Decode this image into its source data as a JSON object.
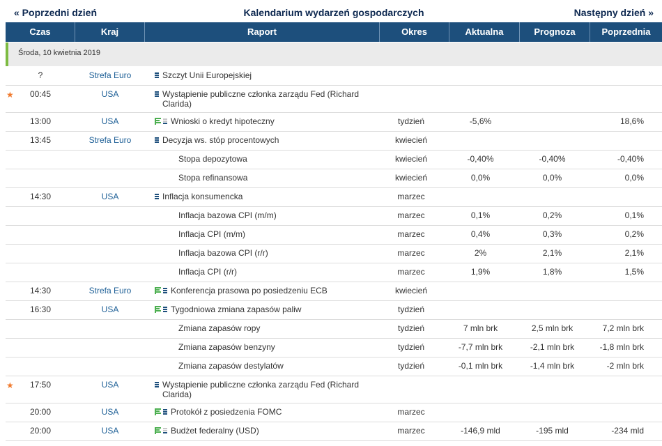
{
  "nav": {
    "prev": "« Poprzedni dzień",
    "title": "Kalendarium wydarzeń gospodarczych",
    "next": "Następny dzień »"
  },
  "headers": [
    "Czas",
    "Kraj",
    "Raport",
    "Okres",
    "Aktualna",
    "Prognoza",
    "Poprzednia"
  ],
  "day_label": "Środa, 10 kwietnia 2019",
  "events": [
    {
      "star": false,
      "time": "?",
      "country": "Strefa Euro",
      "report": "Szczyt Unii Europejskiej",
      "importance": "high",
      "doc": false,
      "sub": false,
      "tall": false,
      "period": "",
      "actual": "",
      "forecast": "",
      "previous": ""
    },
    {
      "star": true,
      "time": "00:45",
      "country": "USA",
      "report": "Wystąpienie publiczne członka zarządu Fed (Richard Clarida)",
      "importance": "high",
      "doc": false,
      "sub": false,
      "tall": true,
      "period": "",
      "actual": "",
      "forecast": "",
      "previous": ""
    },
    {
      "star": false,
      "time": "13:00",
      "country": "USA",
      "report": "Wnioski o kredyt hipoteczny",
      "importance": "low",
      "doc": true,
      "sub": false,
      "tall": false,
      "period": "tydzień",
      "actual": "-5,6%",
      "forecast": "",
      "previous": "18,6%"
    },
    {
      "star": false,
      "time": "13:45",
      "country": "Strefa Euro",
      "report": "Decyzja ws. stóp procentowych",
      "importance": "high",
      "doc": false,
      "sub": false,
      "tall": false,
      "period": "kwiecień",
      "actual": "",
      "forecast": "",
      "previous": ""
    },
    {
      "star": false,
      "time": "",
      "country": "",
      "report": "Stopa depozytowa",
      "importance": "",
      "doc": false,
      "sub": true,
      "tall": false,
      "period": "kwiecień",
      "actual": "-0,40%",
      "forecast": "-0,40%",
      "previous": "-0,40%"
    },
    {
      "star": false,
      "time": "",
      "country": "",
      "report": "Stopa refinansowa",
      "importance": "",
      "doc": false,
      "sub": true,
      "tall": false,
      "period": "kwiecień",
      "actual": "0,0%",
      "forecast": "0,0%",
      "previous": "0,0%"
    },
    {
      "star": false,
      "time": "14:30",
      "country": "USA",
      "report": "Inflacja konsumencka",
      "importance": "high",
      "doc": false,
      "sub": false,
      "tall": false,
      "period": "marzec",
      "actual": "",
      "forecast": "",
      "previous": ""
    },
    {
      "star": false,
      "time": "",
      "country": "",
      "report": "Inflacja bazowa CPI (m/m)",
      "importance": "",
      "doc": false,
      "sub": true,
      "tall": false,
      "period": "marzec",
      "actual": "0,1%",
      "forecast": "0,2%",
      "previous": "0,1%"
    },
    {
      "star": false,
      "time": "",
      "country": "",
      "report": "Inflacja CPI (m/m)",
      "importance": "",
      "doc": false,
      "sub": true,
      "tall": false,
      "period": "marzec",
      "actual": "0,4%",
      "forecast": "0,3%",
      "previous": "0,2%"
    },
    {
      "star": false,
      "time": "",
      "country": "",
      "report": "Inflacja bazowa CPI (r/r)",
      "importance": "",
      "doc": false,
      "sub": true,
      "tall": false,
      "period": "marzec",
      "actual": "2%",
      "forecast": "2,1%",
      "previous": "2,1%"
    },
    {
      "star": false,
      "time": "",
      "country": "",
      "report": "Inflacja CPI (r/r)",
      "importance": "",
      "doc": false,
      "sub": true,
      "tall": false,
      "period": "marzec",
      "actual": "1,9%",
      "forecast": "1,8%",
      "previous": "1,5%"
    },
    {
      "star": false,
      "time": "14:30",
      "country": "Strefa Euro",
      "report": "Konferencja prasowa po posiedzeniu ECB",
      "importance": "high",
      "doc": true,
      "sub": false,
      "tall": false,
      "period": "kwiecień",
      "actual": "",
      "forecast": "",
      "previous": ""
    },
    {
      "star": false,
      "time": "16:30",
      "country": "USA",
      "report": "Tygodniowa zmiana zapasów paliw",
      "importance": "med",
      "doc": true,
      "sub": false,
      "tall": false,
      "period": "tydzień",
      "actual": "",
      "forecast": "",
      "previous": ""
    },
    {
      "star": false,
      "time": "",
      "country": "",
      "report": "Zmiana zapasów ropy",
      "importance": "",
      "doc": false,
      "sub": true,
      "tall": false,
      "period": "tydzień",
      "actual": "7 mln brk",
      "forecast": "2,5 mln brk",
      "previous": "7,2 mln brk"
    },
    {
      "star": false,
      "time": "",
      "country": "",
      "report": "Zmiana zapasów benzyny",
      "importance": "",
      "doc": false,
      "sub": true,
      "tall": false,
      "period": "tydzień",
      "actual": "-7,7 mln brk",
      "forecast": "-2,1 mln brk",
      "previous": "-1,8 mln brk"
    },
    {
      "star": false,
      "time": "",
      "country": "",
      "report": "Zmiana zapasów destylatów",
      "importance": "",
      "doc": false,
      "sub": true,
      "tall": false,
      "period": "tydzień",
      "actual": "-0,1 mln brk",
      "forecast": "-1,4 mln brk",
      "previous": "-2 mln brk"
    },
    {
      "star": true,
      "time": "17:50",
      "country": "USA",
      "report": "Wystąpienie publiczne członka zarządu Fed (Richard Clarida)",
      "importance": "high",
      "doc": false,
      "sub": false,
      "tall": true,
      "period": "",
      "actual": "",
      "forecast": "",
      "previous": ""
    },
    {
      "star": false,
      "time": "20:00",
      "country": "USA",
      "report": "Protokół z posiedzenia FOMC",
      "importance": "high",
      "doc": true,
      "sub": false,
      "tall": false,
      "period": "marzec",
      "actual": "",
      "forecast": "",
      "previous": ""
    },
    {
      "star": false,
      "time": "20:00",
      "country": "USA",
      "report": "Budżet federalny (USD)",
      "importance": "low",
      "doc": true,
      "sub": false,
      "tall": false,
      "period": "marzec",
      "actual": "-146,9 mld",
      "forecast": "-195 mld",
      "previous": "-234 mld"
    }
  ],
  "icons": {
    "star": "star-icon",
    "importance": "importance-bars-icon",
    "doc": "document-icon"
  },
  "colors": {
    "header_bg": "#1d4f7c",
    "link": "#1d5f96",
    "star": "#f07a2e",
    "accent_green": "#7dbb42"
  }
}
